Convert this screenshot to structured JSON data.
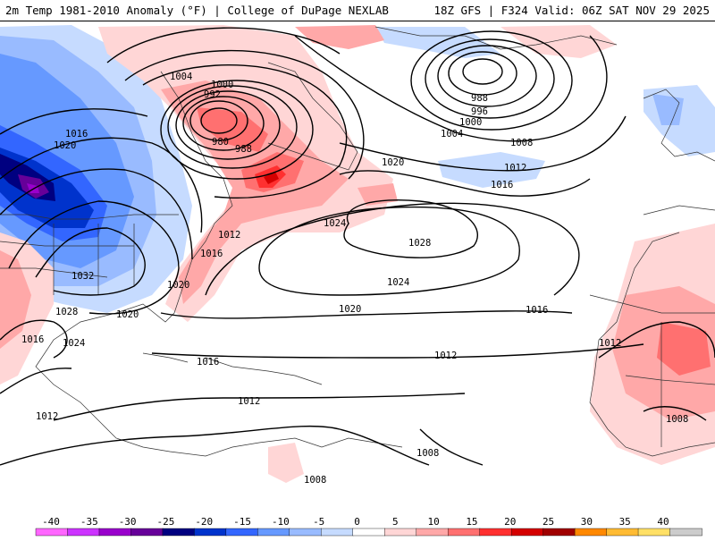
{
  "header": {
    "title": "2m Temp 1981-2010 Anomaly (°F) | College of DuPage NEXLAB",
    "run_info": "18Z GFS | F324 Valid: 06Z SAT NOV 29 2025"
  },
  "colorbar": {
    "ticks": [
      "-40",
      "-35",
      "-30",
      "-25",
      "-20",
      "-15",
      "-10",
      "-5",
      "0",
      "5",
      "10",
      "15",
      "20",
      "25",
      "30",
      "35",
      "40"
    ],
    "colors": [
      "#ff66ff",
      "#cc33ff",
      "#9900cc",
      "#660099",
      "#000080",
      "#0033cc",
      "#3366ff",
      "#6699ff",
      "#99bbff",
      "#c6dbff",
      "#ffffff",
      "#ffd6d6",
      "#ffa8a8",
      "#ff7070",
      "#ff3030",
      "#d40000",
      "#a00000",
      "#ff8800",
      "#ffbb33",
      "#ffe066",
      "#cccccc"
    ]
  },
  "isobar_labels": [
    {
      "id": "l1004a",
      "text": "1004"
    },
    {
      "id": "l1000a",
      "text": "1000"
    },
    {
      "id": "l992",
      "text": "992"
    },
    {
      "id": "l980",
      "text": "980"
    },
    {
      "id": "l988a",
      "text": "988"
    },
    {
      "id": "l988b",
      "text": "988"
    },
    {
      "id": "l996",
      "text": "996"
    },
    {
      "id": "l1000b",
      "text": "1000"
    },
    {
      "id": "l1004b",
      "text": "1004"
    },
    {
      "id": "l1008a",
      "text": "1008"
    },
    {
      "id": "l1012a",
      "text": "1012"
    },
    {
      "id": "l1016a",
      "text": "1016"
    },
    {
      "id": "l1020a",
      "text": "1020"
    },
    {
      "id": "l1016b",
      "text": "1016"
    },
    {
      "id": "l1020b",
      "text": "1020"
    },
    {
      "id": "l1024a",
      "text": "1024"
    },
    {
      "id": "l1028a",
      "text": "1028"
    },
    {
      "id": "l1024b",
      "text": "1024"
    },
    {
      "id": "l1012b",
      "text": "1012"
    },
    {
      "id": "l1016c",
      "text": "1016"
    },
    {
      "id": "l1020c",
      "text": "1020"
    },
    {
      "id": "l1032",
      "text": "1032"
    },
    {
      "id": "l1028b",
      "text": "1028"
    },
    {
      "id": "l1020d",
      "text": "1020"
    },
    {
      "id": "l1016d",
      "text": "1016"
    },
    {
      "id": "l1024c",
      "text": "1024"
    },
    {
      "id": "l1020e",
      "text": "1020"
    },
    {
      "id": "l1016e",
      "text": "1016"
    },
    {
      "id": "l1012c",
      "text": "1012"
    },
    {
      "id": "l1016f",
      "text": "1016"
    },
    {
      "id": "l1012d",
      "text": "1012"
    },
    {
      "id": "l1012e",
      "text": "1012"
    },
    {
      "id": "l1012f",
      "text": "1012"
    },
    {
      "id": "l1008b",
      "text": "1008"
    },
    {
      "id": "l1008c",
      "text": "1008"
    },
    {
      "id": "l1008d",
      "text": "1008"
    }
  ]
}
